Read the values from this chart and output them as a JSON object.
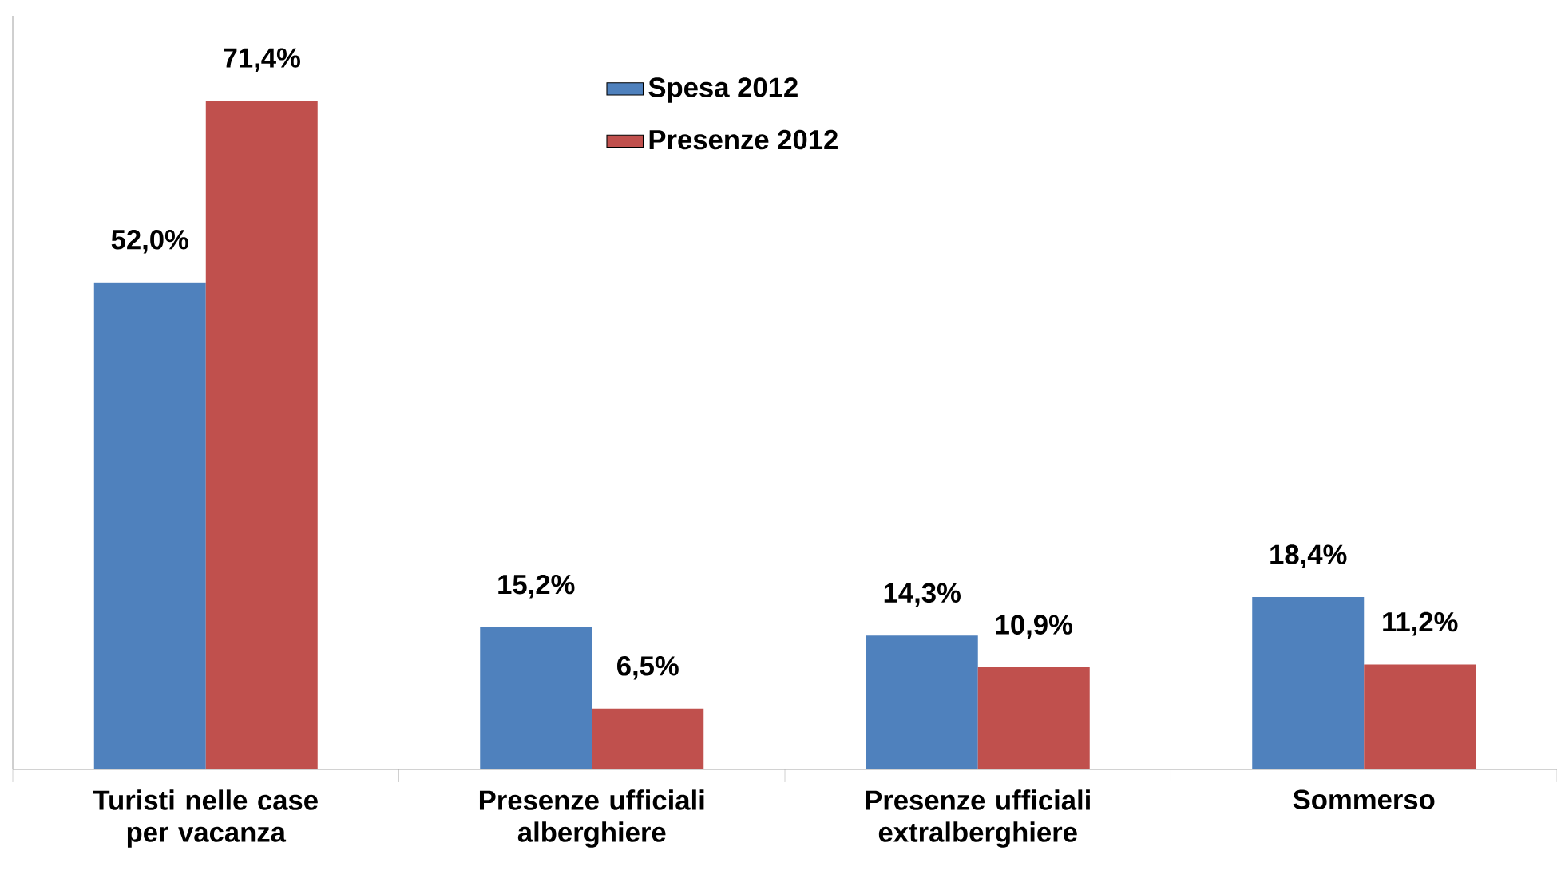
{
  "chart_data": {
    "type": "bar",
    "categories": [
      "Turisti nelle case per vacanza",
      "Presenze ufficiali alberghiere",
      "Presenze ufficiali extralberghiere",
      "Sommerso"
    ],
    "series": [
      {
        "name": "Spesa 2012",
        "color": "#4f81bd",
        "values": [
          52.0,
          15.2,
          14.3,
          18.4
        ],
        "value_labels": [
          "52,0%",
          "15,2%",
          "14,3%",
          "18,4%"
        ]
      },
      {
        "name": "Presenze 2012",
        "color": "#c0504d",
        "values": [
          71.4,
          6.5,
          10.9,
          11.2
        ],
        "value_labels": [
          "71,4%",
          "6,5%",
          "10,9%",
          "11,2%"
        ]
      }
    ],
    "legend": "top"
  }
}
